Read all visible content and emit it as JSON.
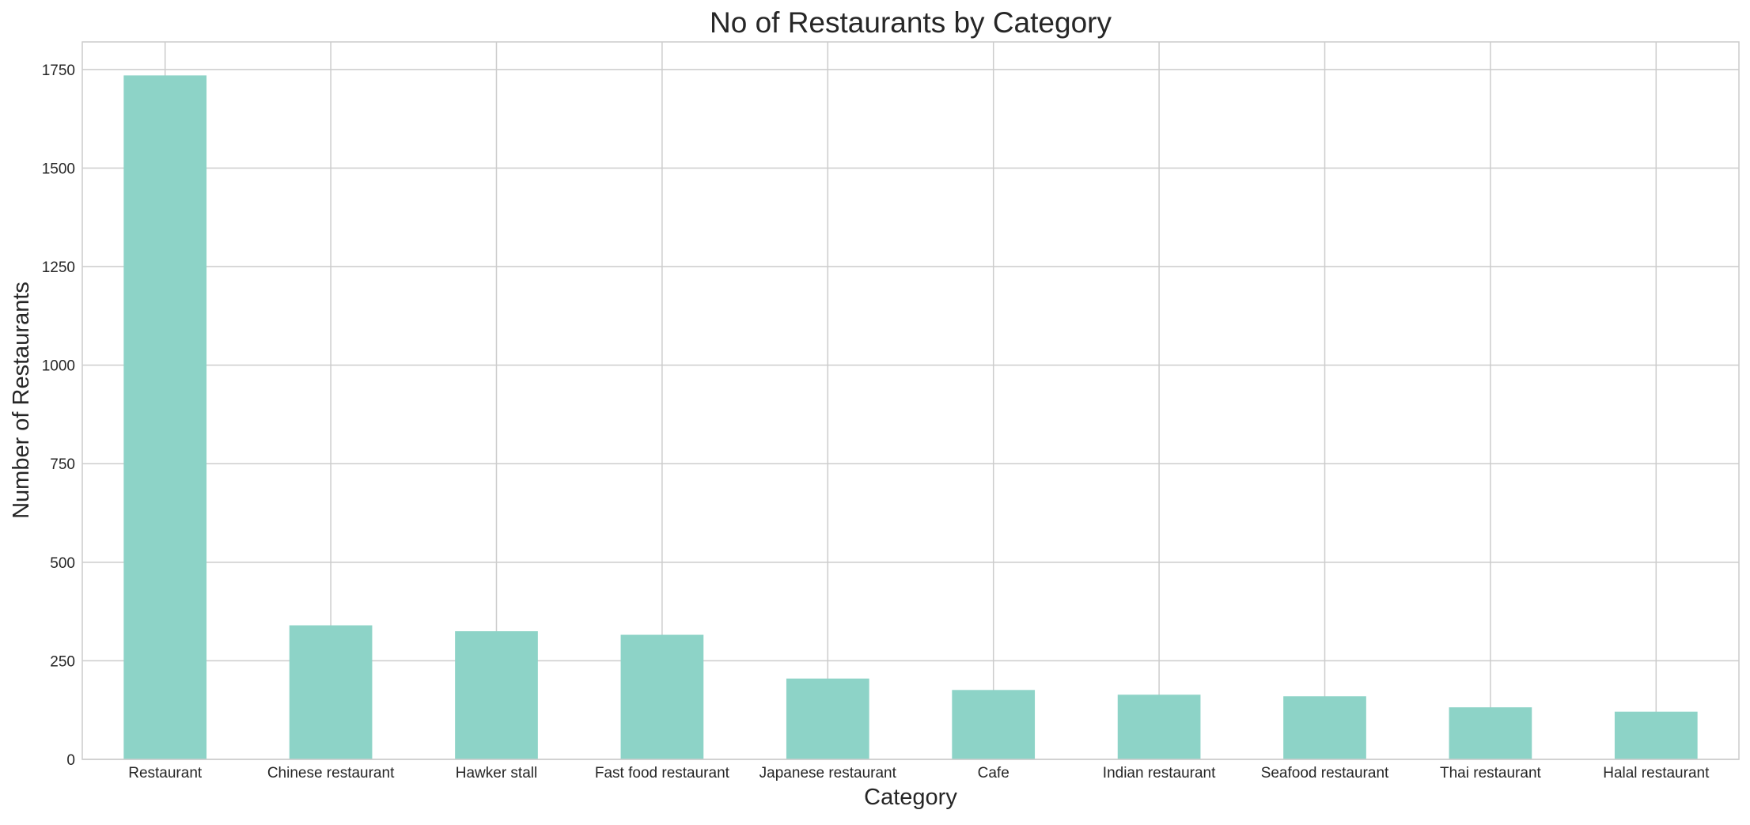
{
  "chart_data": {
    "type": "bar",
    "title": "No of Restaurants by Category",
    "xlabel": "Category",
    "ylabel": "Number of Restaurants",
    "categories": [
      "Restaurant",
      "Chinese restaurant",
      "Hawker stall",
      "Fast food restaurant",
      "Japanese restaurant",
      "Cafe",
      "Indian restaurant",
      "Seafood restaurant",
      "Thai restaurant",
      "Halal restaurant"
    ],
    "values": [
      1735,
      340,
      325,
      316,
      205,
      176,
      164,
      160,
      132,
      121
    ],
    "ylim": [
      0,
      1820
    ],
    "yticks": [
      0,
      250,
      500,
      750,
      1000,
      1250,
      1500,
      1750
    ],
    "grid": true,
    "bar_color": "#8dd3c7",
    "grid_color": "#cccccc",
    "frame_color": "#cccccc",
    "text_color": "#262626"
  }
}
